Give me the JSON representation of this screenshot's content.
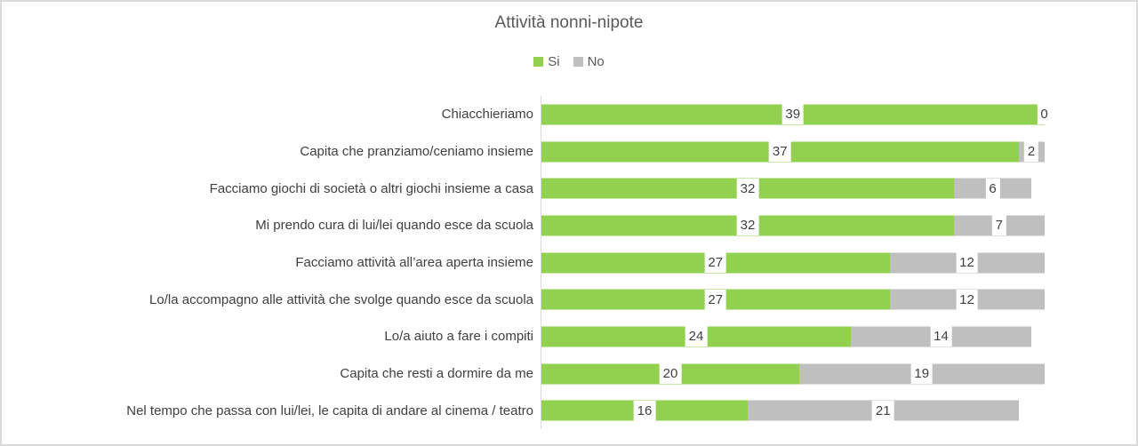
{
  "title": "Attività nonni-nipote",
  "legend": {
    "items": [
      {
        "label": "Si",
        "color": "#92D050"
      },
      {
        "label": "No",
        "color": "#BFBFBF"
      }
    ]
  },
  "chart_data": {
    "type": "bar",
    "orientation": "horizontal",
    "stacked": true,
    "title": "Attività nonni-nipote",
    "categories": [
      "Chiacchieriamo",
      "Capita che pranziamo/ceniamo insieme",
      "Facciamo giochi di società o altri giochi insieme a casa",
      "Mi prendo cura di lui/lei quando esce da scuola",
      "Facciamo attività all’area aperta insieme",
      "Lo/la accompagno alle attività che svolge quando esce da scuola",
      "Lo/a aiuto a fare i compiti",
      "Capita che resti a dormire da me",
      "Nel tempo che passa con lui/lei, le capita di andare al cinema / teatro"
    ],
    "series": [
      {
        "name": "Si",
        "color": "#92D050",
        "values": [
          39,
          37,
          32,
          32,
          27,
          27,
          24,
          20,
          16
        ]
      },
      {
        "name": "No",
        "color": "#BFBFBF",
        "values": [
          0,
          2,
          6,
          7,
          12,
          12,
          14,
          19,
          21
        ]
      }
    ],
    "xlim": [
      0,
      39
    ],
    "grid": false,
    "legend_position": "top",
    "value_labels": "inside-center-white-background"
  },
  "colors": {
    "axis_line": "#D9D9D9",
    "chart_border": "#DADADA",
    "title_text": "#595959",
    "label_text": "#404040",
    "background": "#FFFFFF"
  }
}
